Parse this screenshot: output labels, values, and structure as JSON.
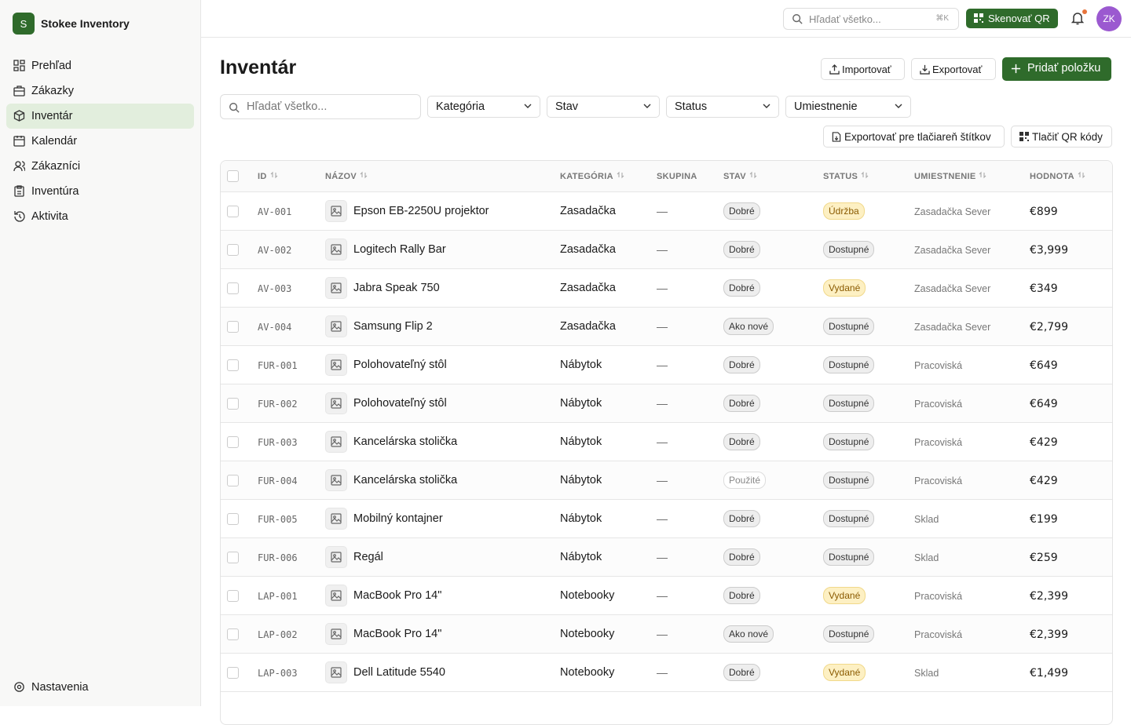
{
  "sidebar": {
    "logo": "S",
    "brand": "Stokee Inventory",
    "nav": [
      "Prehľad",
      "Zákazky",
      "Inventár",
      "Kalendár",
      "Zákazníci",
      "Inventúra",
      "Aktivita"
    ],
    "settings": "Nastavenia"
  },
  "topbar": {
    "search": "Hľadať všetko...",
    "shortcut": "⌘K",
    "scan": "Skenovať QR",
    "avatar": "ZK"
  },
  "page": {
    "title": "Inventár",
    "import": "Importovať",
    "export": "Exportovať",
    "add": "Pridať položku",
    "search": "Hľadať všetko...",
    "filters": [
      "Kategória",
      "Stav",
      "Status",
      "Umiestnenie"
    ],
    "export_labels": "Exportovať pre tlačiareň štítkov",
    "print_qr": "Tlačiť QR kódy"
  },
  "table": {
    "columns": [
      "ID",
      "NÁZOV",
      "KATEGÓRIA",
      "SKUPINA",
      "STAV",
      "STATUS",
      "UMIESTNENIE",
      "HODNOTA"
    ],
    "rows": [
      [
        "AV-001",
        "Epson EB-2250U projektor",
        "Zasadačka",
        "—",
        "Dobré",
        "Údržba",
        "Zasadačka Sever",
        "€899"
      ],
      [
        "AV-002",
        "Logitech Rally Bar",
        "Zasadačka",
        "—",
        "Dobré",
        "Dostupné",
        "Zasadačka Sever",
        "€3,999"
      ],
      [
        "AV-003",
        "Jabra Speak 750",
        "Zasadačka",
        "—",
        "Dobré",
        "Vydané",
        "Zasadačka Sever",
        "€349"
      ],
      [
        "AV-004",
        "Samsung Flip 2",
        "Zasadačka",
        "—",
        "Ako nové",
        "Dostupné",
        "Zasadačka Sever",
        "€2,799"
      ],
      [
        "FUR-001",
        "Polohovateľný stôl",
        "Nábytok",
        "—",
        "Dobré",
        "Dostupné",
        "Pracoviská",
        "€649"
      ],
      [
        "FUR-002",
        "Polohovateľný stôl",
        "Nábytok",
        "—",
        "Dobré",
        "Dostupné",
        "Pracoviská",
        "€649"
      ],
      [
        "FUR-003",
        "Kancelárska stolička",
        "Nábytok",
        "—",
        "Dobré",
        "Dostupné",
        "Pracoviská",
        "€429"
      ],
      [
        "FUR-004",
        "Kancelárska stolička",
        "Nábytok",
        "—",
        "Použité",
        "Dostupné",
        "Pracoviská",
        "€429"
      ],
      [
        "FUR-005",
        "Mobilný kontajner",
        "Nábytok",
        "—",
        "Dobré",
        "Dostupné",
        "Sklad",
        "€199"
      ],
      [
        "FUR-006",
        "Regál",
        "Nábytok",
        "—",
        "Dobré",
        "Dostupné",
        "Sklad",
        "€259"
      ],
      [
        "LAP-001",
        "MacBook Pro 14\"",
        "Notebooky",
        "—",
        "Dobré",
        "Vydané",
        "Pracoviská",
        "€2,399"
      ],
      [
        "LAP-002",
        "MacBook Pro 14\"",
        "Notebooky",
        "—",
        "Ako nové",
        "Dostupné",
        "Pracoviská",
        "€2,399"
      ],
      [
        "LAP-003",
        "Dell Latitude 5540",
        "Notebooky",
        "—",
        "Dobré",
        "Vydané",
        "Sklad",
        "€1,499"
      ]
    ]
  }
}
